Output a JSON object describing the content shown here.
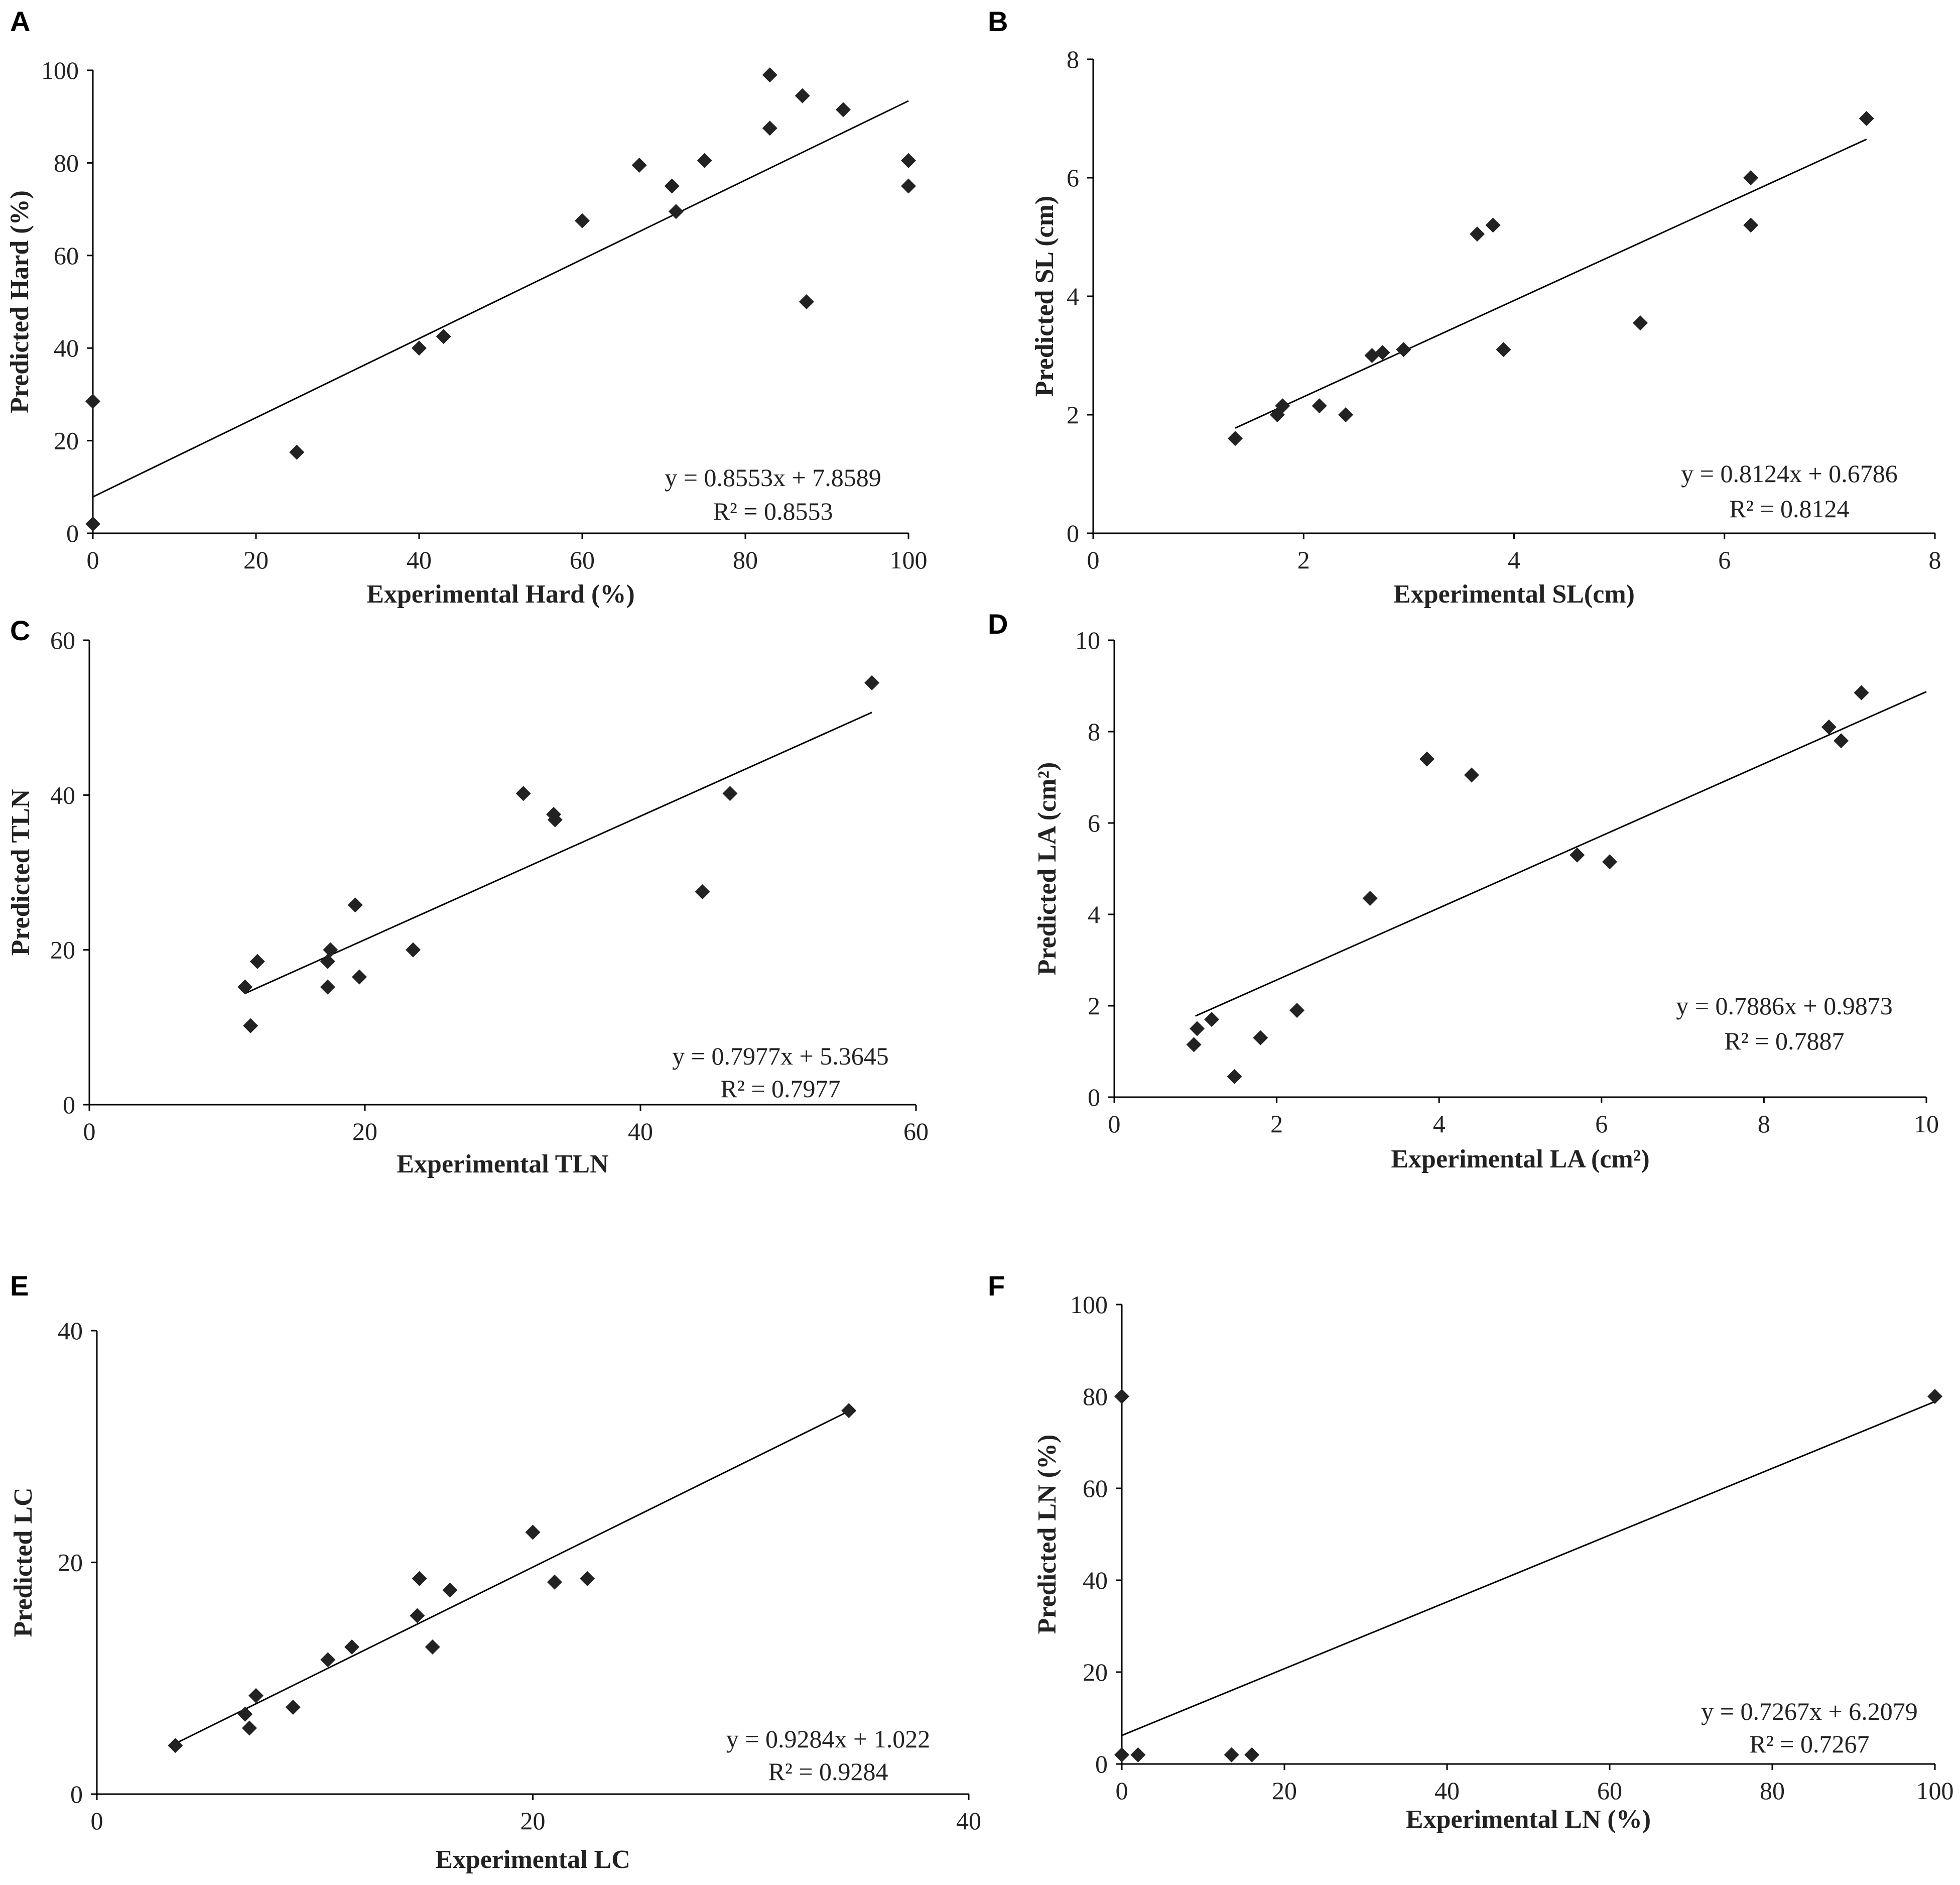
{
  "colors": {
    "marker": "#222222",
    "axis": "#000000",
    "background": "#ffffff"
  },
  "chart_data": [
    {
      "panel": "A",
      "type": "scatter",
      "xlabel": "Experimental Hard (%)",
      "ylabel": "Predicted Hard (%)",
      "xlim": [
        0,
        100
      ],
      "ylim": [
        0,
        100
      ],
      "xticks": [
        0,
        20,
        40,
        60,
        80,
        100
      ],
      "yticks": [
        0,
        20,
        40,
        60,
        80,
        100
      ],
      "points": [
        [
          0,
          28.5
        ],
        [
          0,
          2
        ],
        [
          25,
          17.5
        ],
        [
          40,
          40
        ],
        [
          43,
          42.5
        ],
        [
          60,
          67.5
        ],
        [
          67,
          79.5
        ],
        [
          71,
          75
        ],
        [
          71.5,
          69.5
        ],
        [
          75,
          80.5
        ],
        [
          83,
          87.5
        ],
        [
          83,
          99
        ],
        [
          87,
          94.5
        ],
        [
          87.5,
          50
        ],
        [
          92,
          91.5
        ],
        [
          100,
          80.5
        ],
        [
          100,
          75
        ]
      ],
      "trendline": {
        "slope": 0.8553,
        "intercept": 7.8589,
        "x_range": [
          0,
          100
        ]
      },
      "equation": "y = 0.8553x + 7.8589",
      "r2_label": "R² = 0.8553"
    },
    {
      "panel": "B",
      "type": "scatter",
      "xlabel": "Experimental SL(cm)",
      "ylabel": "Predicted SL (cm)",
      "xlim": [
        0,
        8
      ],
      "ylim": [
        0,
        8
      ],
      "xticks": [
        0,
        2,
        4,
        6,
        8
      ],
      "yticks": [
        0,
        2,
        4,
        6,
        8
      ],
      "points": [
        [
          1.35,
          1.6
        ],
        [
          1.75,
          2
        ],
        [
          1.8,
          2.15
        ],
        [
          2.15,
          2.15
        ],
        [
          2.4,
          2
        ],
        [
          2.65,
          3
        ],
        [
          2.75,
          3.05
        ],
        [
          2.95,
          3.1
        ],
        [
          3.65,
          5.05
        ],
        [
          3.8,
          5.2
        ],
        [
          3.9,
          3.1
        ],
        [
          5.2,
          3.55
        ],
        [
          6.25,
          6
        ],
        [
          6.25,
          5.2
        ],
        [
          7.35,
          7
        ]
      ],
      "trendline": {
        "slope": 0.8124,
        "intercept": 0.6786,
        "x_range": [
          1.35,
          7.35
        ]
      },
      "equation": "y = 0.8124x + 0.6786",
      "r2_label": "R² = 0.8124"
    },
    {
      "panel": "C",
      "type": "scatter",
      "xlabel": "Experimental TLN",
      "ylabel": "Predicted TLN",
      "xlim": [
        0,
        60
      ],
      "ylim": [
        0,
        60
      ],
      "xticks": [
        0,
        20,
        40,
        60
      ],
      "yticks": [
        0,
        20,
        40,
        60
      ],
      "points": [
        [
          11.3,
          15.2
        ],
        [
          11.7,
          10.2
        ],
        [
          12.2,
          18.5
        ],
        [
          17.3,
          15.2
        ],
        [
          17.3,
          18.5
        ],
        [
          17.5,
          20
        ],
        [
          19.3,
          25.8
        ],
        [
          19.6,
          16.5
        ],
        [
          23.5,
          20
        ],
        [
          31.5,
          40.2
        ],
        [
          33.7,
          37.5
        ],
        [
          33.8,
          36.8
        ],
        [
          44.5,
          27.5
        ],
        [
          46.5,
          40.2
        ],
        [
          56.8,
          54.5
        ]
      ],
      "trendline": {
        "slope": 0.7977,
        "intercept": 5.3645,
        "x_range": [
          11.3,
          56.8
        ]
      },
      "equation": "y = 0.7977x + 5.3645",
      "r2_label": "R² = 0.7977"
    },
    {
      "panel": "D",
      "type": "scatter",
      "xlabel": "Experimental LA (cm²)",
      "ylabel": "Predicted LA (cm²)",
      "xlim": [
        0,
        10
      ],
      "ylim": [
        0,
        10
      ],
      "xticks": [
        0,
        2,
        4,
        6,
        8,
        10
      ],
      "yticks": [
        0,
        2,
        4,
        6,
        8,
        10
      ],
      "points": [
        [
          0.98,
          1.15
        ],
        [
          1.02,
          1.5
        ],
        [
          1.2,
          1.7
        ],
        [
          1.48,
          0.45
        ],
        [
          1.8,
          1.3
        ],
        [
          2.25,
          1.9
        ],
        [
          3.15,
          4.35
        ],
        [
          3.85,
          7.4
        ],
        [
          4.4,
          7.05
        ],
        [
          5.7,
          5.3
        ],
        [
          6.1,
          5.15
        ],
        [
          8.8,
          8.1
        ],
        [
          8.95,
          7.8
        ],
        [
          9.2,
          8.85
        ]
      ],
      "trendline": {
        "slope": 0.7886,
        "intercept": 0.9873,
        "x_range": [
          1,
          10
        ]
      },
      "equation": "y = 0.7886x + 0.9873",
      "r2_label": "R² = 0.7887"
    },
    {
      "panel": "E",
      "type": "scatter",
      "xlabel": "Experimental LC",
      "ylabel": "Predicted LC",
      "xlim": [
        0,
        40
      ],
      "ylim": [
        0,
        40
      ],
      "xticks": [
        0,
        20,
        40
      ],
      "yticks": [
        0,
        20,
        40
      ],
      "points": [
        [
          3.6,
          4.2
        ],
        [
          6.8,
          6.9
        ],
        [
          7.0,
          5.7
        ],
        [
          7.3,
          8.5
        ],
        [
          9.0,
          7.5
        ],
        [
          10.6,
          11.6
        ],
        [
          11.7,
          12.7
        ],
        [
          14.7,
          15.4
        ],
        [
          14.8,
          18.6
        ],
        [
          15.4,
          12.7
        ],
        [
          16.2,
          17.6
        ],
        [
          20,
          22.6
        ],
        [
          21,
          18.3
        ],
        [
          22.5,
          18.6
        ],
        [
          34.5,
          33.1
        ]
      ],
      "trendline": {
        "slope": 0.9284,
        "intercept": 1.022,
        "x_range": [
          3.6,
          34.5
        ]
      },
      "equation": "y = 0.9284x + 1.022",
      "r2_label": "R² = 0.9284"
    },
    {
      "panel": "F",
      "type": "scatter",
      "xlabel": "Experimental LN (%)",
      "ylabel": "Predicted LN (%)",
      "xlim": [
        0,
        100
      ],
      "ylim": [
        0,
        100
      ],
      "xticks": [
        0,
        20,
        40,
        60,
        80,
        100
      ],
      "yticks": [
        0,
        20,
        40,
        60,
        80,
        100
      ],
      "points": [
        [
          0,
          80
        ],
        [
          0,
          2
        ],
        [
          2,
          2
        ],
        [
          13.5,
          2
        ],
        [
          16,
          2
        ],
        [
          100,
          80
        ]
      ],
      "trendline": {
        "slope": 0.7267,
        "intercept": 6.2079,
        "x_range": [
          0,
          100
        ]
      },
      "equation": "y = 0.7267x + 6.2079",
      "r2_label": "R² = 0.7267"
    }
  ]
}
